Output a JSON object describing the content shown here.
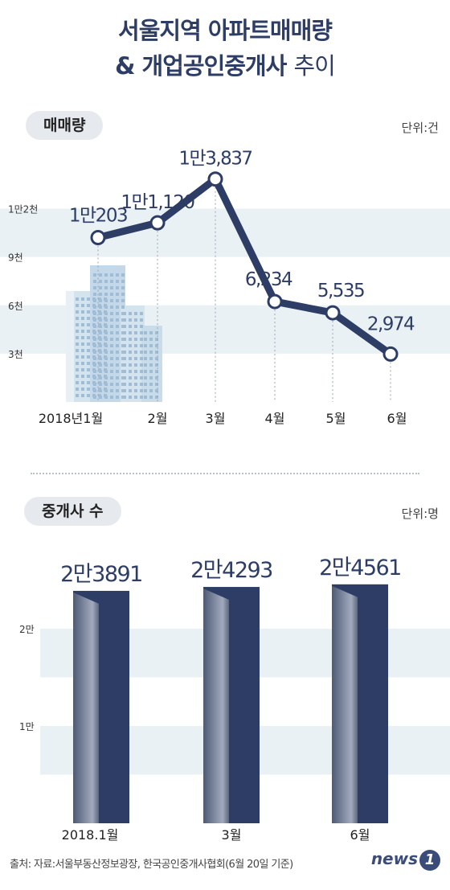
{
  "title_line1": "서울지역 아파트매매량",
  "title_line2_bold": "& 개업공인중개사",
  "title_line2_light": "추이",
  "source": "출처: 자료:서울부동산정보광장, 한국공인중개사협회(6월 20일 기준)",
  "logo_text": "news",
  "logo_num": "1",
  "colors": {
    "navy": "#2d3d66",
    "band": "#eaf1f4",
    "marker_fill": "#ffffff"
  },
  "chart_data": [
    {
      "type": "line",
      "title": "매매량",
      "unit_label": "단위:건",
      "categories": [
        "2018년1월",
        "2월",
        "3월",
        "4월",
        "5월",
        "6월"
      ],
      "series": [
        {
          "values": [
            10203,
            11120,
            13837,
            6234,
            5535,
            2974
          ],
          "data_labels": [
            "1만203",
            "1만1,120",
            "1만3,837",
            "6,234",
            "5,535",
            "2,974"
          ]
        }
      ],
      "yticks": [
        3000,
        6000,
        9000,
        12000
      ],
      "ytick_labels": [
        "3천",
        "6천",
        "9천",
        "1만2천"
      ],
      "ylim": [
        0,
        14500
      ],
      "grid": "alternating-bands"
    },
    {
      "type": "bar",
      "title": "중개사 수",
      "unit_label": "단위:명",
      "categories": [
        "2018.1월",
        "3월",
        "6월"
      ],
      "values": [
        23891,
        24293,
        24561
      ],
      "data_labels": [
        "2만3891",
        "2만4293",
        "2만4561"
      ],
      "yticks": [
        10000,
        20000
      ],
      "ytick_labels": [
        "1만",
        "2만"
      ],
      "ylim": [
        0,
        29500
      ],
      "grid": "alternating-bands"
    }
  ]
}
